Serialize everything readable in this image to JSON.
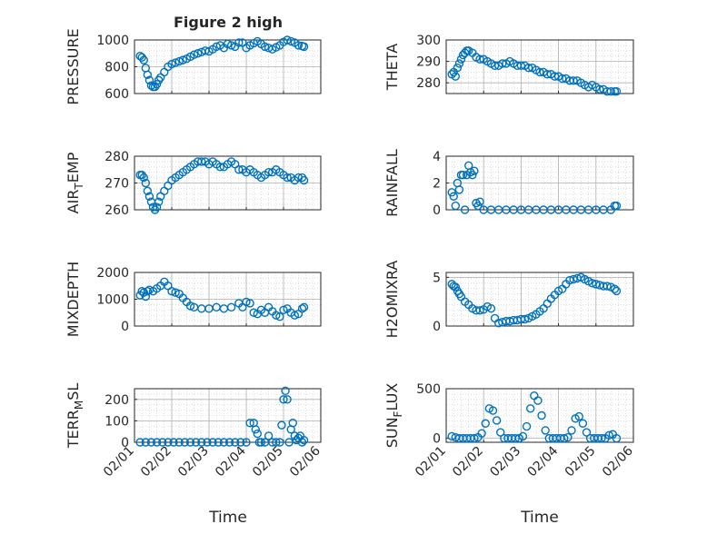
{
  "title": "Figure 2 high",
  "xlabel": "Time",
  "colors": {
    "marker": "#0072BD",
    "axis": "#262626",
    "grid": "#c8c8c8"
  },
  "x_ticks": [
    {
      "value": 0,
      "label": "02/01"
    },
    {
      "value": 1,
      "label": "02/02"
    },
    {
      "value": 2,
      "label": "02/03"
    },
    {
      "value": 3,
      "label": "02/04"
    },
    {
      "value": 4,
      "label": "02/05"
    },
    {
      "value": 5,
      "label": "02/06"
    }
  ],
  "chart_data": [
    {
      "type": "scatter",
      "ylabel": "PRESSURE",
      "ylim": [
        600,
        1000
      ],
      "yticks": [
        {
          "value": 600,
          "label": "600"
        },
        {
          "value": 800,
          "label": "800"
        },
        {
          "value": 1000,
          "label": "1000"
        }
      ],
      "grid": true,
      "xlim": [
        0,
        5
      ],
      "series": [
        {
          "marker": "circle",
          "x": [
            0.15,
            0.2,
            0.25,
            0.3,
            0.35,
            0.4,
            0.45,
            0.5,
            0.55,
            0.6,
            0.65,
            0.7,
            0.8,
            0.9,
            1.0,
            1.1,
            1.2,
            1.3,
            1.4,
            1.5,
            1.6,
            1.7,
            1.8,
            1.9,
            2.0,
            2.1,
            2.2,
            2.3,
            2.4,
            2.5,
            2.6,
            2.7,
            2.8,
            2.9,
            3.0,
            3.1,
            3.2,
            3.3,
            3.4,
            3.5,
            3.6,
            3.7,
            3.8,
            3.9,
            4.0,
            4.1,
            4.2,
            4.3,
            4.4,
            4.5,
            4.55
          ],
          "y": [
            880,
            870,
            850,
            790,
            740,
            700,
            660,
            650,
            650,
            670,
            700,
            720,
            760,
            800,
            820,
            830,
            840,
            850,
            860,
            875,
            890,
            900,
            910,
            920,
            915,
            930,
            950,
            960,
            940,
            970,
            960,
            950,
            980,
            980,
            940,
            960,
            975,
            990,
            970,
            950,
            940,
            930,
            945,
            960,
            985,
            1000,
            990,
            980,
            960,
            955,
            950
          ]
        }
      ]
    },
    {
      "type": "scatter",
      "ylabel": "THETA",
      "ylim": [
        275,
        300
      ],
      "yticks": [
        {
          "value": 280,
          "label": "280"
        },
        {
          "value": 290,
          "label": "290"
        },
        {
          "value": 300,
          "label": "300"
        }
      ],
      "grid": true,
      "xlim": [
        0,
        5
      ],
      "series": [
        {
          "marker": "circle",
          "x": [
            0.15,
            0.2,
            0.25,
            0.3,
            0.35,
            0.4,
            0.45,
            0.5,
            0.55,
            0.6,
            0.7,
            0.8,
            0.9,
            1.0,
            1.1,
            1.2,
            1.3,
            1.4,
            1.5,
            1.6,
            1.7,
            1.8,
            1.9,
            2.0,
            2.1,
            2.2,
            2.3,
            2.4,
            2.5,
            2.6,
            2.7,
            2.8,
            2.9,
            3.0,
            3.1,
            3.2,
            3.3,
            3.4,
            3.5,
            3.6,
            3.7,
            3.8,
            3.9,
            4.0,
            4.1,
            4.2,
            4.3,
            4.4,
            4.5,
            4.55
          ],
          "y": [
            284,
            285,
            283,
            287,
            289,
            291,
            293,
            294,
            295,
            295,
            294,
            292,
            291,
            291,
            290,
            289,
            288,
            288,
            289,
            289,
            290,
            289,
            288,
            288,
            288,
            287,
            287,
            286,
            285,
            285,
            284,
            284,
            283,
            283,
            282,
            282,
            281,
            281,
            281,
            280,
            279,
            278,
            279,
            278,
            277,
            277,
            276,
            276,
            276,
            276
          ]
        }
      ]
    },
    {
      "type": "scatter",
      "ylabel": "AIR_TEMP",
      "ylim": [
        260,
        280
      ],
      "yticks": [
        {
          "value": 260,
          "label": "260"
        },
        {
          "value": 270,
          "label": "270"
        },
        {
          "value": 280,
          "label": "280"
        }
      ],
      "grid": true,
      "xlim": [
        0,
        5
      ],
      "series": [
        {
          "marker": "circle",
          "x": [
            0.15,
            0.2,
            0.25,
            0.3,
            0.35,
            0.4,
            0.45,
            0.5,
            0.55,
            0.6,
            0.65,
            0.7,
            0.8,
            0.9,
            1.0,
            1.1,
            1.2,
            1.3,
            1.4,
            1.5,
            1.6,
            1.7,
            1.8,
            1.9,
            2.0,
            2.1,
            2.2,
            2.3,
            2.4,
            2.5,
            2.6,
            2.7,
            2.8,
            2.9,
            3.0,
            3.1,
            3.2,
            3.3,
            3.4,
            3.5,
            3.6,
            3.7,
            3.8,
            3.9,
            4.0,
            4.1,
            4.2,
            4.3,
            4.4,
            4.5,
            4.55
          ],
          "y": [
            273,
            273,
            272,
            270,
            267,
            265,
            263,
            261,
            260,
            261,
            263,
            265,
            267,
            269,
            271,
            272,
            273,
            274,
            275,
            276,
            277,
            278,
            278,
            278,
            277,
            278,
            277,
            276,
            276,
            277,
            278,
            277,
            275,
            275,
            274,
            275,
            274,
            273,
            272,
            273,
            274,
            274,
            275,
            274,
            273,
            272,
            272,
            271,
            272,
            272,
            271
          ]
        }
      ]
    },
    {
      "type": "scatter",
      "ylabel": "RAINFALL",
      "ylim": [
        0,
        4
      ],
      "yticks": [
        {
          "value": 0,
          "label": "0"
        },
        {
          "value": 2,
          "label": "2"
        },
        {
          "value": 4,
          "label": "4"
        }
      ],
      "grid": true,
      "xlim": [
        0,
        5
      ],
      "series": [
        {
          "marker": "circle",
          "x": [
            0.15,
            0.2,
            0.25,
            0.3,
            0.35,
            0.4,
            0.45,
            0.5,
            0.55,
            0.6,
            0.65,
            0.7,
            0.75,
            0.8,
            0.85,
            0.9,
            1.0,
            1.2,
            1.4,
            1.6,
            1.8,
            2.0,
            2.2,
            2.4,
            2.6,
            2.8,
            3.0,
            3.2,
            3.4,
            3.6,
            3.8,
            4.0,
            4.2,
            4.4,
            4.5,
            4.55
          ],
          "y": [
            1.3,
            1.0,
            0.3,
            2.0,
            1.5,
            2.6,
            2.6,
            0.0,
            2.6,
            3.3,
            2.8,
            2.6,
            2.9,
            0.5,
            0.3,
            0.6,
            0.0,
            0.0,
            0.0,
            0.0,
            0.0,
            0.0,
            0.0,
            0.0,
            0.0,
            0.0,
            0.0,
            0.0,
            0.0,
            0.0,
            0.0,
            0.0,
            0.0,
            0.0,
            0.3,
            0.3
          ]
        }
      ]
    },
    {
      "type": "scatter",
      "ylabel": "MIXDEPTH",
      "ylim": [
        0,
        2000
      ],
      "yticks": [
        {
          "value": 0,
          "label": "0"
        },
        {
          "value": 1000,
          "label": "1000"
        },
        {
          "value": 2000,
          "label": "2000"
        }
      ],
      "grid": true,
      "xlim": [
        0,
        5
      ],
      "series": [
        {
          "marker": "circle",
          "x": [
            0.15,
            0.2,
            0.25,
            0.3,
            0.35,
            0.4,
            0.5,
            0.6,
            0.7,
            0.8,
            0.9,
            1.0,
            1.1,
            1.2,
            1.3,
            1.4,
            1.5,
            1.6,
            1.8,
            2.0,
            2.2,
            2.4,
            2.6,
            2.8,
            2.9,
            3.0,
            3.1,
            3.2,
            3.3,
            3.4,
            3.5,
            3.6,
            3.7,
            3.8,
            3.9,
            4.0,
            4.1,
            4.2,
            4.3,
            4.4,
            4.5,
            4.55
          ],
          "y": [
            1150,
            1300,
            1250,
            1100,
            1300,
            1350,
            1300,
            1400,
            1500,
            1650,
            1500,
            1300,
            1250,
            1200,
            1050,
            900,
            750,
            700,
            650,
            650,
            700,
            650,
            700,
            850,
            700,
            900,
            850,
            500,
            450,
            600,
            500,
            700,
            550,
            400,
            350,
            600,
            650,
            500,
            400,
            450,
            650,
            700
          ]
        }
      ]
    },
    {
      "type": "scatter",
      "ylabel": "H2OMIXRA",
      "ylim": [
        0,
        5.5
      ],
      "yticks": [
        {
          "value": 0,
          "label": "0"
        },
        {
          "value": 5,
          "label": "5"
        }
      ],
      "grid": true,
      "xlim": [
        0,
        5
      ],
      "series": [
        {
          "marker": "circle",
          "x": [
            0.15,
            0.2,
            0.25,
            0.3,
            0.35,
            0.4,
            0.5,
            0.6,
            0.7,
            0.8,
            0.9,
            1.0,
            1.1,
            1.2,
            1.3,
            1.4,
            1.5,
            1.6,
            1.7,
            1.8,
            1.9,
            2.0,
            2.1,
            2.2,
            2.3,
            2.4,
            2.5,
            2.6,
            2.7,
            2.8,
            2.9,
            3.0,
            3.1,
            3.2,
            3.3,
            3.4,
            3.5,
            3.6,
            3.7,
            3.8,
            3.9,
            4.0,
            4.1,
            4.2,
            4.3,
            4.4,
            4.5,
            4.55
          ],
          "y": [
            4.3,
            4.1,
            4.0,
            3.6,
            3.3,
            3.0,
            2.5,
            2.2,
            1.8,
            1.6,
            1.6,
            1.7,
            2.0,
            1.8,
            0.8,
            0.3,
            0.4,
            0.5,
            0.5,
            0.6,
            0.6,
            0.7,
            0.7,
            0.8,
            1.0,
            1.2,
            1.5,
            1.8,
            2.3,
            2.8,
            3.2,
            3.6,
            3.8,
            4.3,
            4.7,
            4.8,
            4.9,
            5.0,
            4.8,
            4.6,
            4.4,
            4.3,
            4.2,
            4.1,
            4.1,
            4.0,
            3.8,
            3.6
          ]
        }
      ]
    },
    {
      "type": "scatter",
      "ylabel": "TERR_MSL",
      "ylim": [
        0,
        250
      ],
      "yticks": [
        {
          "value": 0,
          "label": "0"
        },
        {
          "value": 100,
          "label": "100"
        },
        {
          "value": 200,
          "label": "200"
        }
      ],
      "grid": true,
      "xlim": [
        0,
        5
      ],
      "series": [
        {
          "marker": "circle",
          "x": [
            0.15,
            0.3,
            0.45,
            0.6,
            0.75,
            0.9,
            1.05,
            1.2,
            1.35,
            1.5,
            1.65,
            1.8,
            1.95,
            2.1,
            2.25,
            2.4,
            2.55,
            2.7,
            2.85,
            3.0,
            3.1,
            3.2,
            3.25,
            3.3,
            3.35,
            3.4,
            3.5,
            3.6,
            3.7,
            3.8,
            3.9,
            3.95,
            4.0,
            4.05,
            4.1,
            4.15,
            4.2,
            4.25,
            4.3,
            4.35,
            4.4,
            4.45,
            4.5,
            4.55
          ],
          "y": [
            0,
            0,
            0,
            0,
            0,
            0,
            0,
            0,
            0,
            0,
            0,
            0,
            0,
            0,
            0,
            0,
            0,
            0,
            0,
            0,
            90,
            90,
            60,
            40,
            0,
            0,
            0,
            30,
            0,
            0,
            0,
            80,
            200,
            240,
            200,
            0,
            60,
            90,
            30,
            10,
            20,
            30,
            0,
            10
          ]
        }
      ]
    },
    {
      "type": "scatter",
      "ylabel": "SUN_FLUX",
      "ylim": [
        -40,
        500
      ],
      "yticks": [
        {
          "value": 0,
          "label": "0"
        },
        {
          "value": 500,
          "label": "500"
        }
      ],
      "grid": true,
      "xlim": [
        0,
        5
      ],
      "series": [
        {
          "marker": "circle",
          "x": [
            0.15,
            0.25,
            0.35,
            0.45,
            0.55,
            0.65,
            0.75,
            0.85,
            0.95,
            1.05,
            1.15,
            1.25,
            1.35,
            1.45,
            1.55,
            1.65,
            1.75,
            1.85,
            1.95,
            2.05,
            2.15,
            2.25,
            2.35,
            2.45,
            2.55,
            2.65,
            2.75,
            2.85,
            2.95,
            3.05,
            3.15,
            3.25,
            3.35,
            3.45,
            3.55,
            3.65,
            3.75,
            3.85,
            3.95,
            4.05,
            4.15,
            4.25,
            4.35,
            4.45,
            4.55
          ],
          "y": [
            20,
            10,
            0,
            0,
            0,
            0,
            0,
            10,
            50,
            150,
            300,
            280,
            180,
            60,
            0,
            0,
            0,
            0,
            0,
            20,
            120,
            300,
            430,
            380,
            230,
            80,
            0,
            0,
            0,
            0,
            0,
            10,
            80,
            200,
            220,
            150,
            60,
            0,
            0,
            0,
            0,
            0,
            30,
            40,
            0
          ]
        }
      ]
    }
  ]
}
